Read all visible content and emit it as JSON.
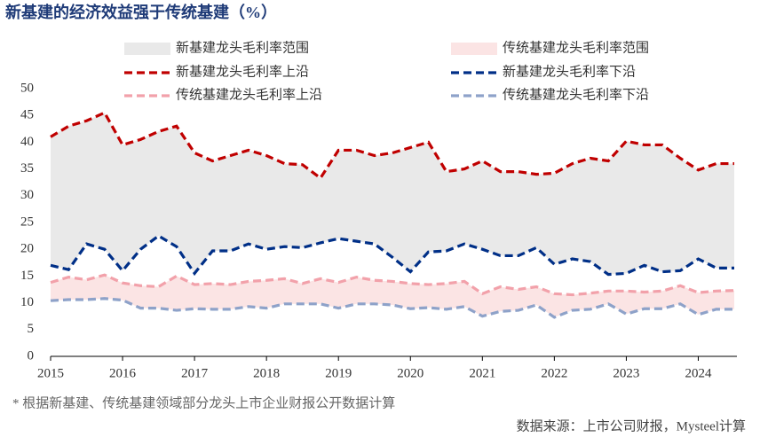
{
  "chart_data": {
    "type": "line",
    "title": "新基建的经济效益强于传统基建（%）",
    "footnote": "* 根据新基建、传统基建领域部分龙头上市企业财报公开数据计算",
    "source": "数据来源：上市公司财报，Mysteel计算",
    "categories": [
      "2015",
      null,
      null,
      null,
      "2016",
      null,
      null,
      null,
      "2017",
      null,
      null,
      null,
      "2018",
      null,
      null,
      null,
      "2019",
      null,
      null,
      null,
      "2020",
      null,
      null,
      null,
      "2021",
      null,
      null,
      null,
      "2022",
      null,
      null,
      null,
      "2023",
      null,
      null,
      null,
      "2024",
      null,
      null
    ],
    "ylim": [
      0,
      50
    ],
    "yticks": [
      0,
      5,
      10,
      15,
      20,
      25,
      30,
      35,
      40,
      45,
      50
    ],
    "ranges": [
      {
        "name": "新基建龙头毛利率范围",
        "color": "#e9e9e9"
      },
      {
        "name": "传统基建龙头毛利率范围",
        "color": "#fbe4e4"
      }
    ],
    "series": [
      {
        "name": "新基建龙头毛利率上沿",
        "color": "#c00000",
        "values": [
          41,
          43,
          44,
          45.5,
          39.5,
          40.5,
          42,
          43,
          38,
          36.5,
          37.5,
          38.5,
          37.5,
          36,
          35.8,
          33.3,
          38.5,
          38.5,
          37.5,
          38,
          39,
          40,
          34.5,
          35,
          36.5,
          34.5,
          34.5,
          34,
          34.2,
          36,
          37,
          36.5,
          40.2,
          39.5,
          39.5,
          37,
          34.8,
          36,
          36
        ]
      },
      {
        "name": "新基建龙头毛利率下沿",
        "color": "#002f87",
        "values": [
          17,
          16.2,
          21,
          20,
          16,
          20,
          22.5,
          20.5,
          15.5,
          19.7,
          19.7,
          21,
          20,
          20.5,
          20.3,
          21.2,
          22,
          21.5,
          21,
          18.5,
          15.8,
          19.5,
          19.7,
          21,
          20,
          18.8,
          18.8,
          20.3,
          17.2,
          18.2,
          17.7,
          15.3,
          15.5,
          17,
          15.8,
          16,
          18.2,
          16.5,
          16.5
        ]
      },
      {
        "name": "传统基建龙头毛利率上沿",
        "color": "#f2a1aa",
        "values": [
          13.8,
          14.8,
          14.3,
          15.2,
          13.7,
          13.2,
          13,
          15,
          13.4,
          13.6,
          13.4,
          14,
          14.2,
          14.5,
          13.6,
          14.5,
          13.8,
          14.8,
          14.2,
          14,
          13.6,
          13.4,
          13.6,
          14,
          11.7,
          13,
          12.5,
          13,
          11.7,
          11.5,
          11.8,
          12.2,
          12.2,
          12,
          12.2,
          13.2,
          11.9,
          12.2,
          12.3
        ]
      },
      {
        "name": "传统基建龙头毛利率下沿",
        "color": "#8ea2c9",
        "values": [
          10.4,
          10.6,
          10.6,
          10.8,
          10.5,
          9,
          9,
          8.6,
          8.9,
          8.8,
          8.8,
          9.3,
          9,
          9.8,
          9.8,
          9.8,
          9,
          9.8,
          9.8,
          9.6,
          8.9,
          9.1,
          8.8,
          9.3,
          7.5,
          8.4,
          8.6,
          9.6,
          7.3,
          8.6,
          8.8,
          9.8,
          7.9,
          8.9,
          8.9,
          9.8,
          7.8,
          8.8,
          8.8
        ]
      }
    ]
  }
}
